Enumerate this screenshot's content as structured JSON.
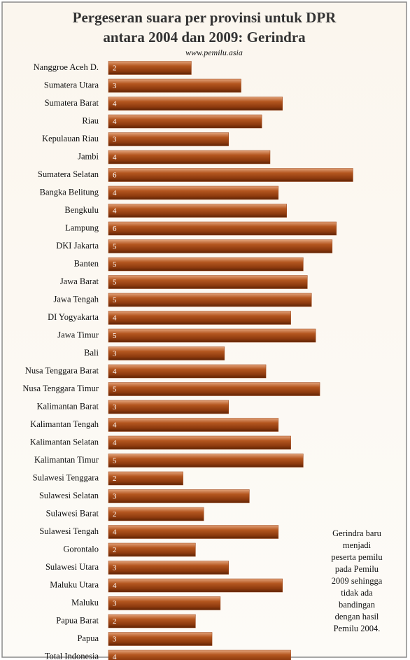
{
  "chart_data": {
    "type": "bar",
    "orientation": "horizontal",
    "title": [
      "Pergeseran suara per provinsi untuk DPR",
      "antara 2004 dan 2009: Gerindra"
    ],
    "subtitle": "www.pemilu.asia",
    "categories": [
      "Nanggroe Aceh D.",
      "Sumatera Utara",
      "Sumatera Barat",
      "Riau",
      "Kepulauan Riau",
      "Jambi",
      "Sumatera Selatan",
      "Bangka Belitung",
      "Bengkulu",
      "Lampung",
      "DKI Jakarta",
      "Banten",
      "Jawa Barat",
      "Jawa Tengah",
      "DI Yogyakarta",
      "Jawa Timur",
      "Bali",
      "Nusa Tenggara  Barat",
      "Nusa Tenggara  Timur",
      "Kalimantan Barat",
      "Kalimantan Tengah",
      "Kalimantan Selatan",
      "Kalimantan Timur",
      "Sulawesi Tenggara",
      "Sulawesi Selatan",
      "Sulawesi Barat",
      "Sulawesi Tengah",
      "Gorontalo",
      "Sulawesi Utara",
      "Maluku Utara",
      "Maluku",
      "Papua Barat",
      "Papua",
      "Total Indonesia"
    ],
    "values": [
      2.0,
      3.2,
      4.2,
      3.7,
      2.9,
      3.9,
      5.9,
      4.1,
      4.3,
      5.5,
      5.4,
      4.7,
      4.8,
      4.9,
      4.4,
      5.0,
      2.8,
      3.8,
      5.1,
      2.9,
      4.1,
      4.4,
      4.7,
      1.8,
      3.4,
      2.3,
      4.1,
      2.1,
      2.9,
      4.2,
      2.7,
      2.1,
      2.5,
      4.4
    ],
    "value_labels": [
      "2",
      "3",
      "4",
      "4",
      "3",
      "4",
      "6",
      "4",
      "4",
      "6",
      "5",
      "5",
      "5",
      "5",
      "4",
      "5",
      "3",
      "4",
      "5",
      "3",
      "4",
      "4",
      "5",
      "2",
      "3",
      "2",
      "4",
      "2",
      "3",
      "4",
      "3",
      "2",
      "3",
      "4"
    ],
    "color": "#9a4214",
    "xlim": [
      0,
      6.5
    ],
    "annotation": [
      "Gerindra baru",
      "menjadi",
      "peserta pemilu",
      "pada Pemilu",
      "2009 sehingga",
      "tidak ada",
      "bandingan",
      "dengan hasil",
      "Pemilu 2004."
    ]
  }
}
